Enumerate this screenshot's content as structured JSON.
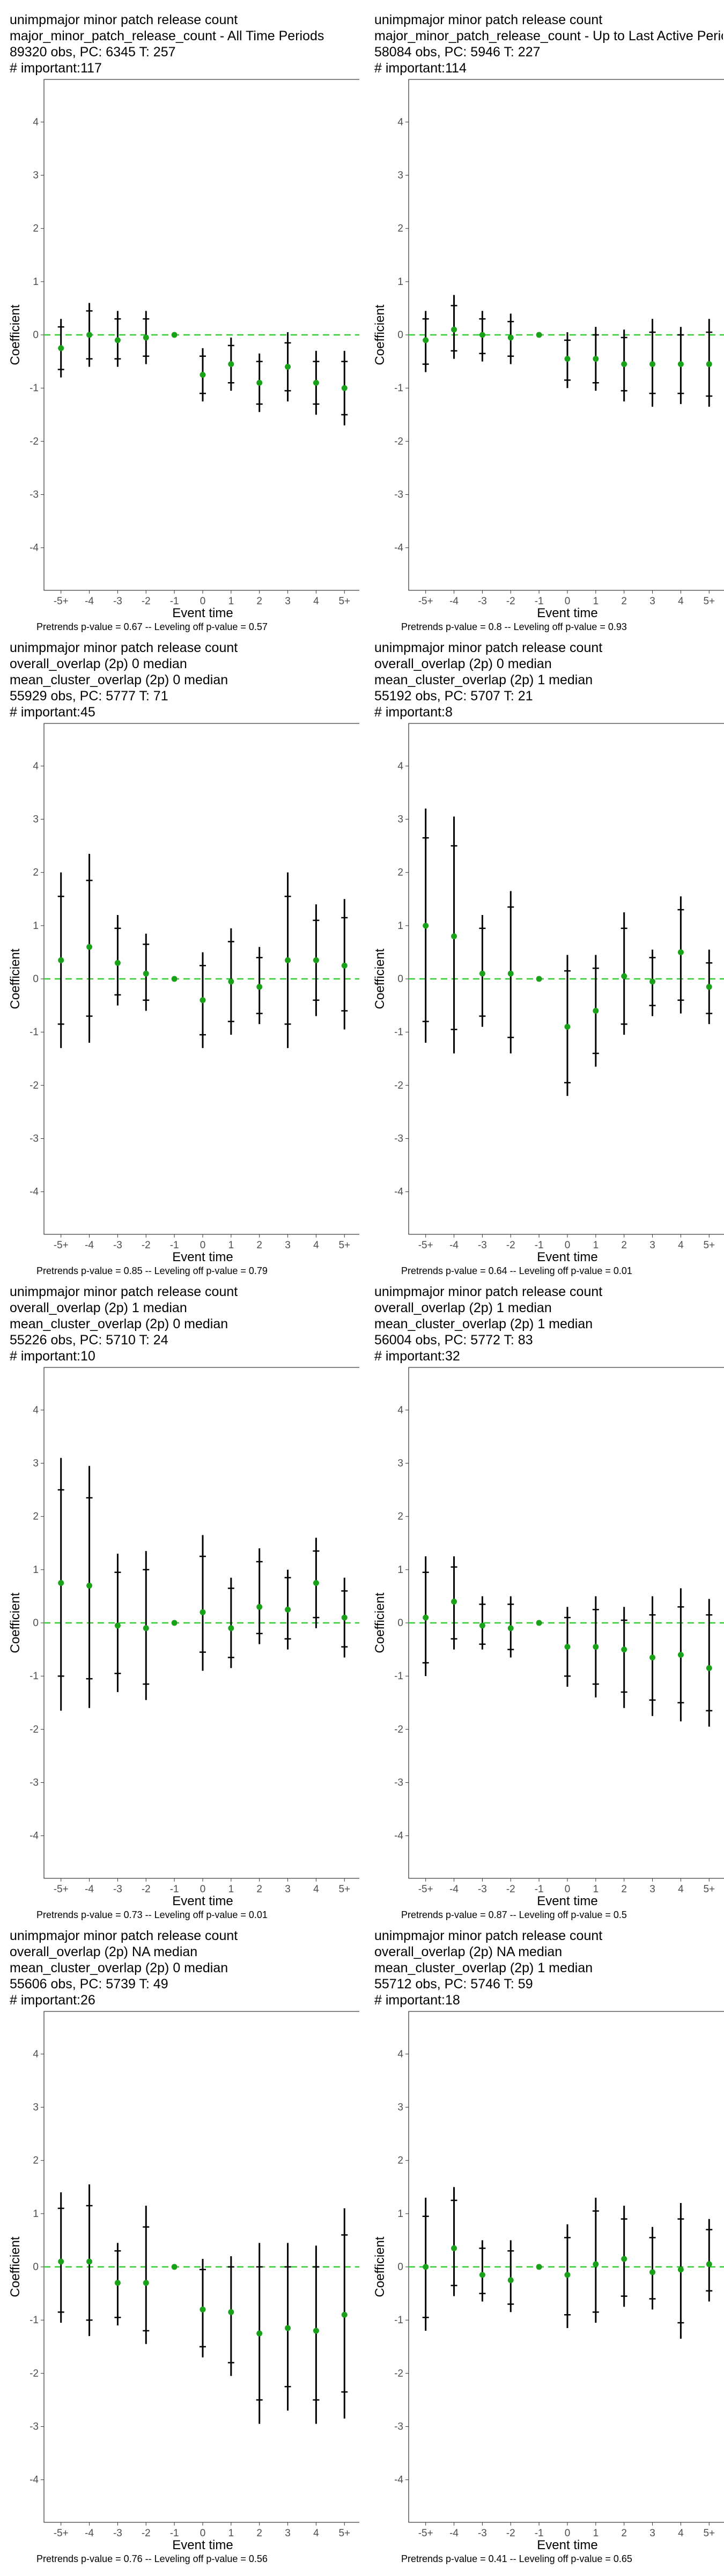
{
  "common": {
    "xlabel": "Event time",
    "ylabel": "Coefficient",
    "x_ticks": [
      "-5+",
      "-4",
      "-3",
      "-2",
      "-1",
      "0",
      "1",
      "2",
      "3",
      "4",
      "5+"
    ],
    "y_ticks": [
      -4,
      -3,
      -2,
      -1,
      0,
      1,
      2,
      3,
      4
    ],
    "ylim": [
      -4.8,
      4.8
    ],
    "point_color": "#1aa11a",
    "zero_line_color": "#33cc33"
  },
  "chart_data": [
    {
      "type": "scatter",
      "title_lines": [
        "unimpmajor minor patch release count",
        "major_minor_patch_release_count - All Time Periods",
        "89320 obs, PC: 6345 T: 257",
        "# important:117"
      ],
      "footnote": "Pretrends p-value = 0.67 -- Leveling off p-value = 0.57",
      "x": [
        "-5+",
        "-4",
        "-3",
        "-2",
        "-1",
        "0",
        "1",
        "2",
        "3",
        "4",
        "5+"
      ],
      "y": [
        -0.25,
        0.0,
        -0.1,
        -0.05,
        0.0,
        -0.75,
        -0.55,
        -0.9,
        -0.6,
        -0.9,
        -1.0
      ],
      "ci95": [
        [
          -0.8,
          0.3
        ],
        [
          -0.6,
          0.6
        ],
        [
          -0.6,
          0.45
        ],
        [
          -0.55,
          0.45
        ],
        [
          0.0,
          0.0
        ],
        [
          -1.25,
          -0.25
        ],
        [
          -1.05,
          -0.05
        ],
        [
          -1.45,
          -0.35
        ],
        [
          -1.25,
          0.05
        ],
        [
          -1.5,
          -0.3
        ],
        [
          -1.7,
          -0.3
        ]
      ],
      "ci90": [
        [
          -0.65,
          0.15
        ],
        [
          -0.45,
          0.45
        ],
        [
          -0.45,
          0.3
        ],
        [
          -0.4,
          0.3
        ],
        [
          0.0,
          0.0
        ],
        [
          -1.1,
          -0.4
        ],
        [
          -0.9,
          -0.2
        ],
        [
          -1.3,
          -0.5
        ],
        [
          -1.05,
          -0.15
        ],
        [
          -1.3,
          -0.5
        ],
        [
          -1.5,
          -0.5
        ]
      ]
    },
    {
      "type": "scatter",
      "title_lines": [
        "unimpmajor minor patch release count",
        "major_minor_patch_release_count - Up to Last Active Period",
        "58084 obs, PC: 5946 T: 227",
        "# important:114"
      ],
      "footnote": "Pretrends p-value = 0.8 -- Leveling off p-value = 0.93",
      "x": [
        "-5+",
        "-4",
        "-3",
        "-2",
        "-1",
        "0",
        "1",
        "2",
        "3",
        "4",
        "5+"
      ],
      "y": [
        -0.1,
        0.1,
        0.0,
        -0.05,
        0.0,
        -0.45,
        -0.45,
        -0.55,
        -0.55,
        -0.55,
        -0.55
      ],
      "ci95": [
        [
          -0.7,
          0.45
        ],
        [
          -0.45,
          0.75
        ],
        [
          -0.5,
          0.45
        ],
        [
          -0.55,
          0.4
        ],
        [
          0.0,
          0.0
        ],
        [
          -1.0,
          0.05
        ],
        [
          -1.05,
          0.15
        ],
        [
          -1.25,
          0.1
        ],
        [
          -1.35,
          0.3
        ],
        [
          -1.3,
          0.15
        ],
        [
          -1.35,
          0.3
        ]
      ],
      "ci90": [
        [
          -0.55,
          0.3
        ],
        [
          -0.3,
          0.55
        ],
        [
          -0.35,
          0.3
        ],
        [
          -0.4,
          0.25
        ],
        [
          0.0,
          0.0
        ],
        [
          -0.85,
          -0.1
        ],
        [
          -0.9,
          0.0
        ],
        [
          -1.05,
          -0.05
        ],
        [
          -1.1,
          0.05
        ],
        [
          -1.1,
          0.0
        ],
        [
          -1.15,
          0.05
        ]
      ]
    },
    {
      "type": "scatter",
      "title_lines": [
        "unimpmajor minor patch release count",
        "overall_overlap (2p) 0 median",
        "mean_cluster_overlap (2p) 0 median",
        "55929 obs, PC: 5777 T: 71",
        "# important:45"
      ],
      "footnote": "Pretrends p-value = 0.85 -- Leveling off p-value = 0.79",
      "x": [
        "-5+",
        "-4",
        "-3",
        "-2",
        "-1",
        "0",
        "1",
        "2",
        "3",
        "4",
        "5+"
      ],
      "y": [
        0.35,
        0.6,
        0.3,
        0.1,
        0.0,
        -0.4,
        -0.05,
        -0.15,
        0.35,
        0.35,
        0.25
      ],
      "ci95": [
        [
          -1.3,
          2.0
        ],
        [
          -1.2,
          2.35
        ],
        [
          -0.5,
          1.2
        ],
        [
          -0.6,
          0.85
        ],
        [
          0.0,
          0.0
        ],
        [
          -1.3,
          0.5
        ],
        [
          -1.05,
          0.95
        ],
        [
          -0.85,
          0.6
        ],
        [
          -1.3,
          2.0
        ],
        [
          -0.7,
          1.4
        ],
        [
          -0.95,
          1.5
        ]
      ],
      "ci90": [
        [
          -0.85,
          1.55
        ],
        [
          -0.7,
          1.85
        ],
        [
          -0.3,
          0.95
        ],
        [
          -0.4,
          0.65
        ],
        [
          0.0,
          0.0
        ],
        [
          -1.05,
          0.25
        ],
        [
          -0.8,
          0.7
        ],
        [
          -0.65,
          0.4
        ],
        [
          -0.85,
          1.55
        ],
        [
          -0.4,
          1.1
        ],
        [
          -0.6,
          1.15
        ]
      ]
    },
    {
      "type": "scatter",
      "title_lines": [
        "unimpmajor minor patch release count",
        "overall_overlap (2p) 0 median",
        "mean_cluster_overlap (2p) 1 median",
        "55192 obs, PC: 5707 T: 21",
        "# important:8"
      ],
      "footnote": "Pretrends p-value = 0.64 -- Leveling off p-value = 0.01",
      "x": [
        "-5+",
        "-4",
        "-3",
        "-2",
        "-1",
        "0",
        "1",
        "2",
        "3",
        "4",
        "5+"
      ],
      "y": [
        1.0,
        0.8,
        0.1,
        0.1,
        0.0,
        -0.9,
        -0.6,
        0.05,
        -0.05,
        0.5,
        -0.15
      ],
      "ci95": [
        [
          -1.2,
          3.2
        ],
        [
          -1.4,
          3.05
        ],
        [
          -0.9,
          1.2
        ],
        [
          -1.4,
          1.65
        ],
        [
          0.0,
          0.0
        ],
        [
          -2.2,
          0.45
        ],
        [
          -1.65,
          0.45
        ],
        [
          -1.05,
          1.25
        ],
        [
          -0.7,
          0.55
        ],
        [
          -0.65,
          1.55
        ],
        [
          -0.85,
          0.55
        ]
      ],
      "ci90": [
        [
          -0.8,
          2.65
        ],
        [
          -0.95,
          2.5
        ],
        [
          -0.7,
          0.95
        ],
        [
          -1.1,
          1.35
        ],
        [
          0.0,
          0.0
        ],
        [
          -1.95,
          0.15
        ],
        [
          -1.4,
          0.2
        ],
        [
          -0.85,
          0.95
        ],
        [
          -0.5,
          0.4
        ],
        [
          -0.4,
          1.3
        ],
        [
          -0.65,
          0.3
        ]
      ]
    },
    {
      "type": "scatter",
      "title_lines": [
        "unimpmajor minor patch release count",
        "overall_overlap (2p) 1 median",
        "mean_cluster_overlap (2p) 0 median",
        "55226 obs, PC: 5710 T: 24",
        "# important:10"
      ],
      "footnote": "Pretrends p-value = 0.73 -- Leveling off p-value = 0.01",
      "x": [
        "-5+",
        "-4",
        "-3",
        "-2",
        "-1",
        "0",
        "1",
        "2",
        "3",
        "4",
        "5+"
      ],
      "y": [
        0.75,
        0.7,
        -0.05,
        -0.1,
        0.0,
        0.2,
        -0.1,
        0.3,
        0.25,
        0.75,
        0.1
      ],
      "ci95": [
        [
          -1.65,
          3.1
        ],
        [
          -1.6,
          2.95
        ],
        [
          -1.3,
          1.3
        ],
        [
          -1.45,
          1.35
        ],
        [
          0.0,
          0.0
        ],
        [
          -0.9,
          1.65
        ],
        [
          -0.85,
          0.85
        ],
        [
          -0.4,
          1.4
        ],
        [
          -0.5,
          1.0
        ],
        [
          -0.1,
          1.6
        ],
        [
          -0.65,
          0.85
        ]
      ],
      "ci90": [
        [
          -1.0,
          2.5
        ],
        [
          -1.05,
          2.35
        ],
        [
          -0.95,
          0.95
        ],
        [
          -1.15,
          1.0
        ],
        [
          0.0,
          0.0
        ],
        [
          -0.55,
          1.25
        ],
        [
          -0.65,
          0.65
        ],
        [
          -0.2,
          1.15
        ],
        [
          -0.3,
          0.85
        ],
        [
          0.1,
          1.35
        ],
        [
          -0.45,
          0.6
        ]
      ]
    },
    {
      "type": "scatter",
      "title_lines": [
        "unimpmajor minor patch release count",
        "overall_overlap (2p) 1 median",
        "mean_cluster_overlap (2p) 1 median",
        "56004 obs, PC: 5772 T: 83",
        "# important:32"
      ],
      "footnote": "Pretrends p-value = 0.87 -- Leveling off p-value = 0.5",
      "x": [
        "-5+",
        "-4",
        "-3",
        "-2",
        "-1",
        "0",
        "1",
        "2",
        "3",
        "4",
        "5+"
      ],
      "y": [
        0.1,
        0.4,
        -0.05,
        -0.1,
        0.0,
        -0.45,
        -0.45,
        -0.5,
        -0.65,
        -0.6,
        -0.85
      ],
      "ci95": [
        [
          -1.0,
          1.25
        ],
        [
          -0.5,
          1.25
        ],
        [
          -0.5,
          0.5
        ],
        [
          -0.65,
          0.5
        ],
        [
          0.0,
          0.0
        ],
        [
          -1.2,
          0.3
        ],
        [
          -1.4,
          0.5
        ],
        [
          -1.6,
          0.3
        ],
        [
          -1.75,
          0.5
        ],
        [
          -1.85,
          0.65
        ],
        [
          -1.95,
          0.45
        ]
      ],
      "ci90": [
        [
          -0.75,
          0.95
        ],
        [
          -0.3,
          1.05
        ],
        [
          -0.4,
          0.35
        ],
        [
          -0.5,
          0.35
        ],
        [
          0.0,
          0.0
        ],
        [
          -1.0,
          0.1
        ],
        [
          -1.15,
          0.25
        ],
        [
          -1.3,
          0.05
        ],
        [
          -1.45,
          0.15
        ],
        [
          -1.5,
          0.3
        ],
        [
          -1.65,
          0.15
        ]
      ]
    },
    {
      "type": "scatter",
      "title_lines": [
        "unimpmajor minor patch release count",
        "overall_overlap (2p) NA median",
        "mean_cluster_overlap (2p) 0 median",
        "55606 obs, PC: 5739 T: 49",
        "# important:26"
      ],
      "footnote": "Pretrends p-value = 0.76 -- Leveling off p-value = 0.56",
      "x": [
        "-5+",
        "-4",
        "-3",
        "-2",
        "-1",
        "0",
        "1",
        "2",
        "3",
        "4",
        "5+"
      ],
      "y": [
        0.1,
        0.1,
        -0.3,
        -0.3,
        0.0,
        -0.8,
        -0.85,
        -1.25,
        -1.15,
        -1.2,
        -0.9
      ],
      "ci95": [
        [
          -1.05,
          1.4
        ],
        [
          -1.3,
          1.55
        ],
        [
          -1.1,
          0.45
        ],
        [
          -1.45,
          1.15
        ],
        [
          0.0,
          0.0
        ],
        [
          -1.7,
          0.15
        ],
        [
          -2.05,
          0.2
        ],
        [
          -2.95,
          0.45
        ],
        [
          -2.7,
          0.45
        ],
        [
          -2.95,
          0.4
        ],
        [
          -2.85,
          1.1
        ]
      ],
      "ci90": [
        [
          -0.85,
          1.1
        ],
        [
          -1.0,
          1.15
        ],
        [
          -0.95,
          0.3
        ],
        [
          -1.2,
          0.75
        ],
        [
          0.0,
          0.0
        ],
        [
          -1.5,
          -0.05
        ],
        [
          -1.8,
          0.0
        ],
        [
          -2.5,
          0.0
        ],
        [
          -2.25,
          0.0
        ],
        [
          -2.5,
          0.0
        ],
        [
          -2.35,
          0.6
        ]
      ]
    },
    {
      "type": "scatter",
      "title_lines": [
        "unimpmajor minor patch release count",
        "overall_overlap (2p) NA median",
        "mean_cluster_overlap (2p) 1 median",
        "55712 obs, PC: 5746 T: 59",
        "# important:18"
      ],
      "footnote": "Pretrends p-value = 0.41 -- Leveling off p-value = 0.65",
      "x": [
        "-5+",
        "-4",
        "-3",
        "-2",
        "-1",
        "0",
        "1",
        "2",
        "3",
        "4",
        "5+"
      ],
      "y": [
        0.0,
        0.35,
        -0.15,
        -0.25,
        0.0,
        -0.15,
        0.05,
        0.15,
        -0.1,
        -0.05,
        0.05
      ],
      "ci95": [
        [
          -1.2,
          1.3
        ],
        [
          -0.55,
          1.5
        ],
        [
          -0.65,
          0.5
        ],
        [
          -0.85,
          0.5
        ],
        [
          0.0,
          0.0
        ],
        [
          -1.15,
          0.8
        ],
        [
          -1.05,
          1.3
        ],
        [
          -0.75,
          1.15
        ],
        [
          -0.8,
          0.75
        ],
        [
          -1.35,
          1.2
        ],
        [
          -0.65,
          0.9
        ]
      ],
      "ci90": [
        [
          -0.95,
          0.95
        ],
        [
          -0.35,
          1.25
        ],
        [
          -0.5,
          0.35
        ],
        [
          -0.7,
          0.3
        ],
        [
          0.0,
          0.0
        ],
        [
          -0.9,
          0.55
        ],
        [
          -0.85,
          1.05
        ],
        [
          -0.55,
          0.9
        ],
        [
          -0.6,
          0.55
        ],
        [
          -1.05,
          0.9
        ],
        [
          -0.45,
          0.7
        ]
      ]
    }
  ]
}
